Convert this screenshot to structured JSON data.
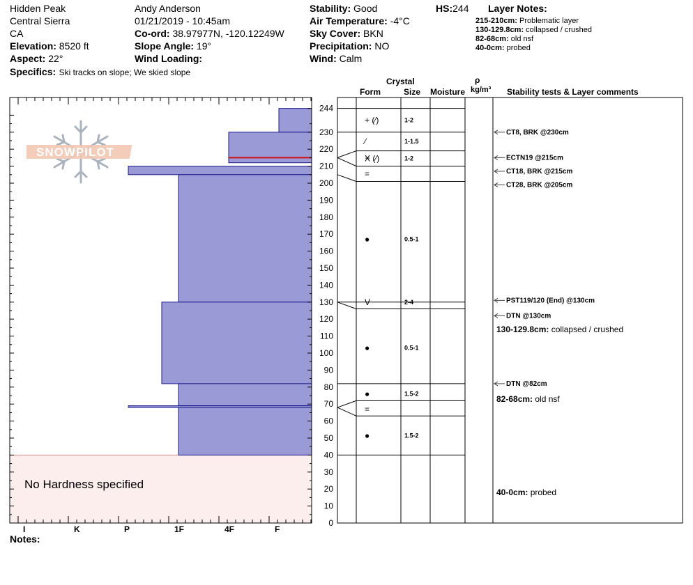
{
  "header": {
    "location": "Hidden Peak",
    "range": "Central Sierra",
    "state": "CA",
    "elevation_label": "Elevation:",
    "elevation": "8520 ft",
    "aspect_label": "Aspect:",
    "aspect": "22°",
    "specifics_label": "Specifics:",
    "specifics": "Ski tracks on slope; We skied slope",
    "observer": "Andy Anderson",
    "datetime": "01/21/2019 - 10:45am",
    "coord_label": "Co-ord:",
    "coord": "38.97977N, -120.12249W",
    "slope_label": "Slope Angle:",
    "slope": "19°",
    "wind_loading_label": "Wind Loading:",
    "stability_label": "Stability:",
    "stability": "Good",
    "air_temp_label": "Air Temperature:",
    "air_temp": "-4°C",
    "sky_label": "Sky Cover:",
    "sky": "BKN",
    "precip_label": "Precipitation:",
    "precip": "NO",
    "wind_label": "Wind:",
    "wind": "Calm",
    "hs_label": "HS:",
    "hs": "244",
    "layer_notes_title": "Layer Notes:",
    "layer_notes": [
      {
        "range": "215-210cm:",
        "text": "Problematic layer"
      },
      {
        "range": "130-129.8cm:",
        "text": "collapsed / crushed"
      },
      {
        "range": "82-68cm:",
        "text": "old nsf"
      },
      {
        "range": "40-0cm:",
        "text": "probed"
      }
    ]
  },
  "logo_text": "SNOWPILOT",
  "table_headers": {
    "crystal": "Crystal",
    "form": "Form",
    "size": "Size",
    "moisture": "Moisture",
    "rho": "ρ",
    "density_unit": "kg/m³",
    "comments": "Stability tests & Layer comments"
  },
  "notes_label": "Notes:",
  "no_hardness_text": "No Hardness specified",
  "colors": {
    "hardness_fill": "#9a9ad6",
    "hardness_stroke": "#1a1a8c",
    "no_hardness_bg": "#fdeeee",
    "problem_line": "#d01010"
  },
  "chart_data": {
    "type": "bar",
    "x_categories": [
      "I",
      "K",
      "P",
      "1F",
      "4F",
      "F"
    ],
    "y_ticks": [
      0,
      10,
      20,
      30,
      40,
      50,
      60,
      70,
      80,
      90,
      100,
      110,
      120,
      130,
      140,
      150,
      160,
      170,
      180,
      190,
      200,
      210,
      220,
      230,
      244
    ],
    "ylim": [
      0,
      250
    ],
    "hardness_layers": [
      {
        "top": 244,
        "bottom": 230,
        "hardness": "F"
      },
      {
        "top": 230,
        "bottom": 212,
        "hardness": "4F"
      },
      {
        "top": 210,
        "bottom": 205,
        "hardness": "P"
      },
      {
        "top": 205,
        "bottom": 130,
        "hardness": "1F"
      },
      {
        "top": 130,
        "bottom": 82,
        "hardness": "1F-"
      },
      {
        "top": 82,
        "bottom": 69,
        "hardness": "1F"
      },
      {
        "top": 69,
        "bottom": 68,
        "hardness": "P"
      },
      {
        "top": 68,
        "bottom": 40,
        "hardness": "1F"
      }
    ],
    "problem_layer_depth": 215,
    "layer_boundaries": [
      244,
      230,
      219,
      210,
      201,
      130,
      126,
      82,
      72,
      63,
      40
    ],
    "crystal_rows": [
      {
        "y": 237,
        "form": "+ (⁄)",
        "size": "1-2"
      },
      {
        "y": 224.5,
        "form": "⁄",
        "size": "1-1.5"
      },
      {
        "y": 214.5,
        "form": "Ӿ (⁄)",
        "size": "1-2"
      },
      {
        "y": 205.5,
        "form": "=",
        "size": ""
      },
      {
        "y": 167,
        "form": "●",
        "size": "0.5-1"
      },
      {
        "y": 130,
        "form": "V",
        "size": "2-4"
      },
      {
        "y": 103,
        "form": "●",
        "size": "0.5-1"
      },
      {
        "y": 76,
        "form": "●",
        "size": "1.5-2"
      },
      {
        "y": 67,
        "form": "=",
        "size": ""
      },
      {
        "y": 51.5,
        "form": "●",
        "size": "1.5-2"
      }
    ],
    "comments": [
      {
        "y": 230,
        "text": "CT8, BRK @230cm",
        "arrow": true,
        "bold": true
      },
      {
        "y": 215,
        "text": "ECTN19 @215cm",
        "arrow": true,
        "bold": true
      },
      {
        "y": 207,
        "text": "CT18, BRK @215cm",
        "arrow": true,
        "bold": true
      },
      {
        "y": 199,
        "text": "CT28, BRK @205cm",
        "arrow": true,
        "bold": true
      },
      {
        "y": 131,
        "text": "PST119/120 (End) @130cm",
        "arrow": true,
        "bold": true
      },
      {
        "y": 122,
        "text": "DTN @130cm",
        "arrow": true,
        "bold": true
      },
      {
        "y": 114,
        "label": "130-129.8cm:",
        "text": "collapsed / crushed",
        "arrow": false,
        "bold": false
      },
      {
        "y": 82,
        "text": "DTN @82cm",
        "arrow": true,
        "bold": true
      },
      {
        "y": 73,
        "label": "82-68cm:",
        "text": "old nsf",
        "arrow": false,
        "bold": false
      },
      {
        "y": 18,
        "label": "40-0cm:",
        "text": "probed",
        "arrow": false,
        "bold": false
      }
    ]
  }
}
